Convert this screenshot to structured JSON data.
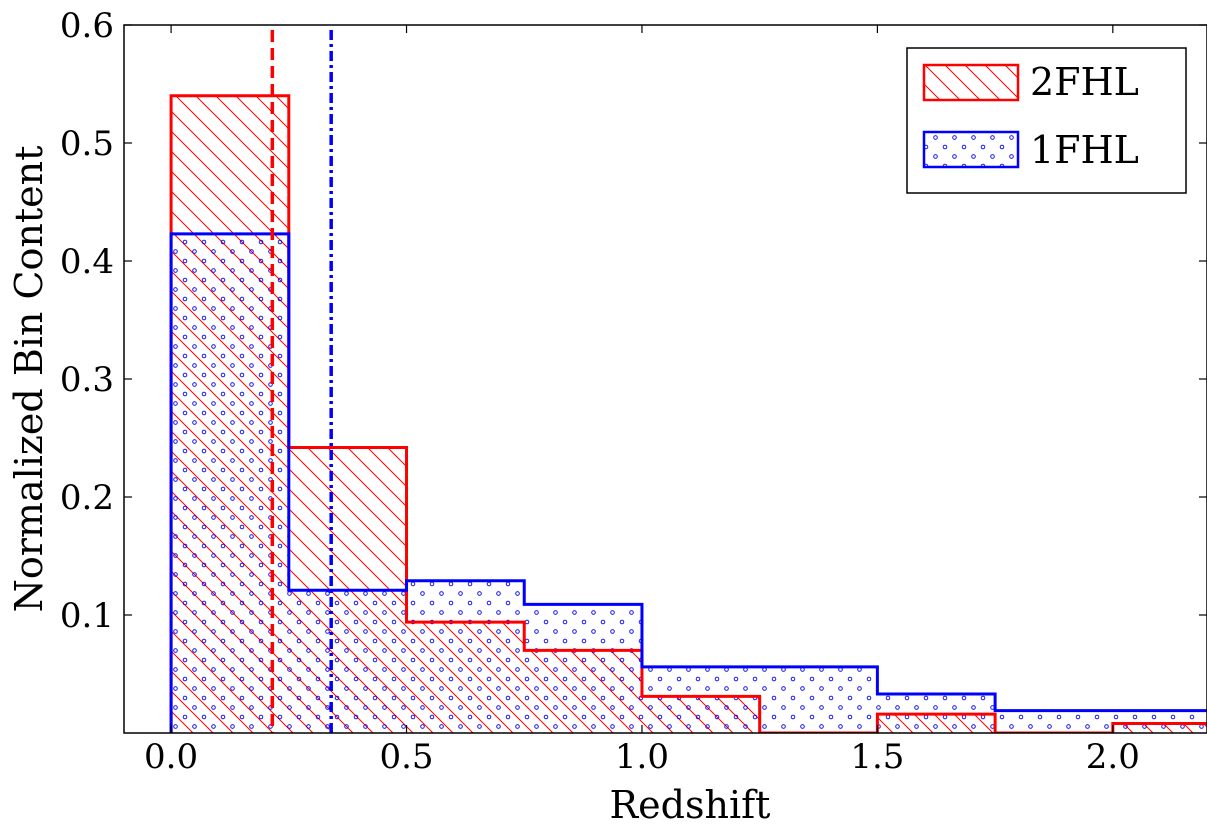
{
  "chart_data": {
    "type": "histogram",
    "xlabel": "Redshift",
    "ylabel": "Normalized Bin Content",
    "xlim": [
      -0.1,
      2.2
    ],
    "ylim": [
      0,
      0.6
    ],
    "xticks": [
      0.0,
      0.5,
      1.0,
      1.5,
      2.0
    ],
    "xtick_labels": [
      "0.0",
      "0.5",
      "1.0",
      "1.5",
      "2.0"
    ],
    "yticks": [
      0.1,
      0.2,
      0.3,
      0.4,
      0.5,
      0.6
    ],
    "ytick_labels": [
      "0.1",
      "0.2",
      "0.3",
      "0.4",
      "0.5",
      "0.6"
    ],
    "bin_edges": [
      0.0,
      0.25,
      0.5,
      0.75,
      1.0,
      1.25,
      1.5,
      1.75,
      2.0,
      2.25
    ],
    "legend_position": "top-right",
    "series": [
      {
        "name": "2FHL",
        "color": "#ff0000",
        "hatch": "diagonal",
        "values": [
          0.54,
          0.242,
          0.094,
          0.07,
          0.031,
          0.0,
          0.016,
          0.0,
          0.008
        ],
        "mean_line": 0.215,
        "mean_line_style": "dashed"
      },
      {
        "name": "1FHL",
        "color": "#0000ff",
        "hatch": "dots",
        "values": [
          0.423,
          0.121,
          0.129,
          0.109,
          0.056,
          0.056,
          0.033,
          0.019,
          0.019
        ],
        "mean_line": 0.34,
        "mean_line_style": "dash-dot"
      }
    ]
  }
}
